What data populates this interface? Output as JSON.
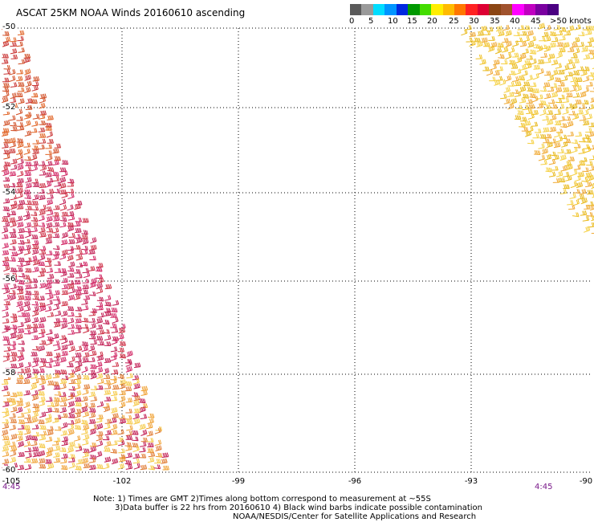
{
  "title": "ASCAT 25KM NOAA Winds 20160610 ascending",
  "legend": {
    "colors": [
      "#5a5a5a",
      "#9a9a9a",
      "#00ddff",
      "#0095ff",
      "#0028e0",
      "#009900",
      "#44dd00",
      "#ffee00",
      "#ffbb00",
      "#ff7700",
      "#ff2222",
      "#dd0033",
      "#8b4513",
      "#a0522d",
      "#ff00ff",
      "#c000c0",
      "#7a00a0",
      "#4b0082"
    ],
    "labels": [
      "0",
      "5",
      "10",
      "15",
      "20",
      "25",
      "30",
      "35",
      "40",
      "45",
      ">50 knots"
    ],
    "unit": "knots"
  },
  "axes": {
    "x_ticks": [
      "-105",
      "-102",
      "-99",
      "-96",
      "-93",
      "-90"
    ],
    "y_ticks": [
      "-50",
      "-52",
      "-54",
      "-56",
      "-58",
      "-60"
    ],
    "x_range": [
      -105,
      -90
    ],
    "y_range": [
      -60,
      -50
    ],
    "grid": "dotted"
  },
  "swath_times": {
    "left": "4:45",
    "right": "4:45"
  },
  "notes": {
    "line1": "Note: 1) Times are GMT 2)Times along bottom correspond to measurement at ~55S",
    "line2": "3)Data buffer is 22 hrs from 20160610 4) Black wind barbs indicate possible contamination",
    "line3": "NOAA/NESDIS/Center for Satellite Applications and Research"
  },
  "wind_barb_colors": {
    "west_swath": [
      "#e06020",
      "#d04a20",
      "#c83030",
      "#cc2a40",
      "#d02060",
      "#c01850",
      "#e07a30",
      "#f0a030",
      "#f5c842"
    ],
    "east_swath": [
      "#f0c020",
      "#f5d040",
      "#e8b818",
      "#f0a830"
    ]
  }
}
